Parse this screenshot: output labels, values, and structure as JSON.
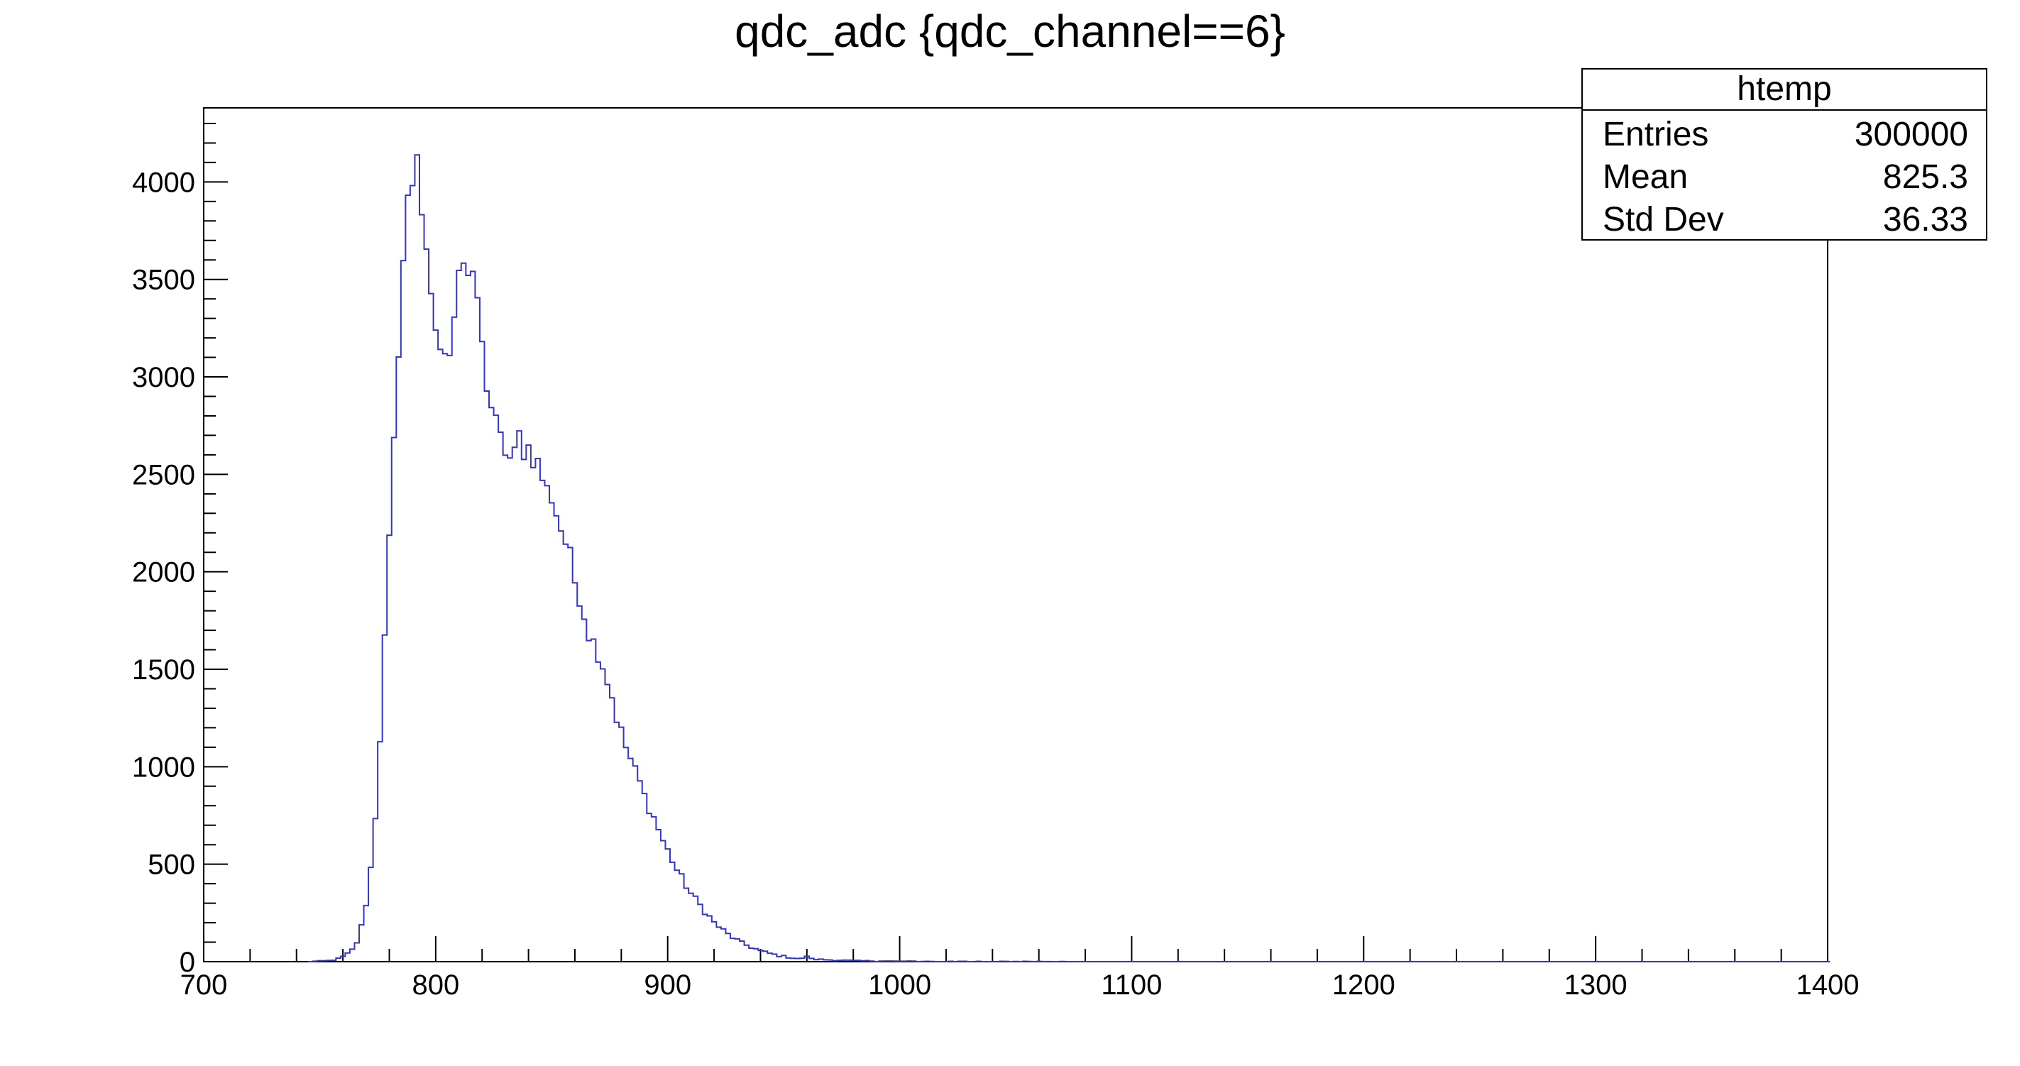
{
  "chart_data": {
    "type": "histogram",
    "title": "qdc_adc {qdc_channel==6}",
    "xlabel": "",
    "ylabel": "",
    "xlim": [
      700,
      1400
    ],
    "ylim": [
      0,
      4380
    ],
    "x_ticks": [
      700,
      800,
      900,
      1000,
      1100,
      1200,
      1300,
      1400
    ],
    "y_ticks": [
      0,
      500,
      1000,
      1500,
      2000,
      2500,
      3000,
      3500,
      4000
    ],
    "grid": false,
    "line_color": "#3333cc",
    "bin_edges": [
      745,
      1400
    ],
    "bin_width": 2,
    "points": [
      [
        745,
        0
      ],
      [
        750,
        3
      ],
      [
        755,
        6
      ],
      [
        758,
        15
      ],
      [
        761,
        30
      ],
      [
        764,
        60
      ],
      [
        766,
        100
      ],
      [
        768,
        180
      ],
      [
        770,
        300
      ],
      [
        772,
        480
      ],
      [
        774,
        750
      ],
      [
        776,
        1150
      ],
      [
        778,
        1650
      ],
      [
        780,
        2150
      ],
      [
        782,
        2650
      ],
      [
        784,
        3150
      ],
      [
        786,
        3600
      ],
      [
        788,
        3900
      ],
      [
        790,
        4000
      ],
      [
        791,
        4100
      ],
      [
        792,
        4170
      ],
      [
        793,
        4050
      ],
      [
        794,
        3850
      ],
      [
        796,
        3600
      ],
      [
        798,
        3380
      ],
      [
        800,
        3250
      ],
      [
        802,
        3150
      ],
      [
        804,
        3080
      ],
      [
        806,
        3150
      ],
      [
        808,
        3350
      ],
      [
        810,
        3570
      ],
      [
        812,
        3600
      ],
      [
        814,
        3520
      ],
      [
        816,
        3480
      ],
      [
        818,
        3410
      ],
      [
        820,
        3150
      ],
      [
        822,
        2960
      ],
      [
        824,
        2850
      ],
      [
        826,
        2760
      ],
      [
        828,
        2680
      ],
      [
        830,
        2620
      ],
      [
        832,
        2580
      ],
      [
        834,
        2600
      ],
      [
        836,
        2700
      ],
      [
        838,
        2620
      ],
      [
        840,
        2640
      ],
      [
        842,
        2580
      ],
      [
        844,
        2560
      ],
      [
        846,
        2480
      ],
      [
        848,
        2420
      ],
      [
        850,
        2380
      ],
      [
        852,
        2300
      ],
      [
        854,
        2220
      ],
      [
        856,
        2150
      ],
      [
        858,
        2080
      ],
      [
        860,
        1950
      ],
      [
        862,
        1870
      ],
      [
        864,
        1780
      ],
      [
        866,
        1680
      ],
      [
        868,
        1640
      ],
      [
        870,
        1580
      ],
      [
        872,
        1520
      ],
      [
        874,
        1440
      ],
      [
        876,
        1360
      ],
      [
        878,
        1250
      ],
      [
        880,
        1180
      ],
      [
        882,
        1100
      ],
      [
        884,
        1040
      ],
      [
        886,
        980
      ],
      [
        888,
        920
      ],
      [
        890,
        850
      ],
      [
        892,
        790
      ],
      [
        894,
        740
      ],
      [
        896,
        680
      ],
      [
        898,
        620
      ],
      [
        900,
        570
      ],
      [
        902,
        520
      ],
      [
        904,
        470
      ],
      [
        906,
        430
      ],
      [
        908,
        390
      ],
      [
        910,
        350
      ],
      [
        912,
        320
      ],
      [
        914,
        290
      ],
      [
        916,
        260
      ],
      [
        918,
        230
      ],
      [
        920,
        200
      ],
      [
        922,
        180
      ],
      [
        924,
        160
      ],
      [
        926,
        140
      ],
      [
        928,
        125
      ],
      [
        930,
        110
      ],
      [
        932,
        95
      ],
      [
        934,
        85
      ],
      [
        936,
        75
      ],
      [
        938,
        65
      ],
      [
        940,
        55
      ],
      [
        942,
        48
      ],
      [
        944,
        42
      ],
      [
        946,
        36
      ],
      [
        948,
        31
      ],
      [
        950,
        27
      ],
      [
        952,
        23
      ],
      [
        954,
        20
      ],
      [
        956,
        17
      ],
      [
        958,
        15
      ],
      [
        960,
        30
      ],
      [
        962,
        14
      ],
      [
        966,
        11
      ],
      [
        970,
        9
      ],
      [
        975,
        7
      ],
      [
        980,
        5
      ],
      [
        985,
        4
      ],
      [
        990,
        3
      ],
      [
        1000,
        2
      ],
      [
        1010,
        2
      ],
      [
        1020,
        1
      ],
      [
        1030,
        1
      ],
      [
        1040,
        1
      ],
      [
        1060,
        1
      ],
      [
        1080,
        0
      ],
      [
        1100,
        0
      ],
      [
        1400,
        0
      ]
    ],
    "stats_box": {
      "title": "htemp",
      "rows": [
        {
          "label": "Entries",
          "value": "300000"
        },
        {
          "label": "Mean",
          "value": "825.3"
        },
        {
          "label": "Std Dev",
          "value": "36.33"
        }
      ]
    }
  }
}
